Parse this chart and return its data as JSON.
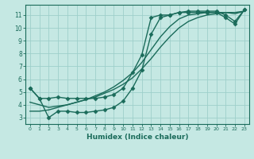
{
  "title": "",
  "xlabel": "Humidex (Indice chaleur)",
  "ylabel": "",
  "bg_color": "#c5e8e3",
  "grid_color": "#9ecfca",
  "line_color": "#1a6b5a",
  "xlim": [
    -0.5,
    23.5
  ],
  "ylim": [
    2.5,
    11.8
  ],
  "yticks": [
    3,
    4,
    5,
    6,
    7,
    8,
    9,
    10,
    11
  ],
  "xticks": [
    0,
    1,
    2,
    3,
    4,
    5,
    6,
    7,
    8,
    9,
    10,
    11,
    12,
    13,
    14,
    15,
    16,
    17,
    18,
    19,
    20,
    21,
    22,
    23
  ],
  "series": [
    {
      "x": [
        0,
        1,
        2,
        3,
        4,
        5,
        6,
        7,
        8,
        9,
        10,
        11,
        12,
        13,
        14,
        15,
        16,
        17,
        18,
        19,
        20,
        21,
        22,
        23
      ],
      "y": [
        5.3,
        4.5,
        4.5,
        4.6,
        4.5,
        4.5,
        4.5,
        4.5,
        4.6,
        4.8,
        5.3,
        6.5,
        7.9,
        10.8,
        11.0,
        11.0,
        11.2,
        11.3,
        11.3,
        11.3,
        11.3,
        11.0,
        10.5,
        11.4
      ],
      "marker": "D",
      "markersize": 2.5,
      "linewidth": 1.0
    },
    {
      "x": [
        0,
        1,
        2,
        3,
        4,
        5,
        6,
        7,
        8,
        9,
        10,
        11,
        12,
        13,
        14,
        15,
        16,
        17,
        18,
        19,
        20,
        21,
        22,
        23
      ],
      "y": [
        5.3,
        4.5,
        3.0,
        3.5,
        3.5,
        3.4,
        3.4,
        3.5,
        3.6,
        3.8,
        4.3,
        5.3,
        6.7,
        9.5,
        10.8,
        11.0,
        11.2,
        11.2,
        11.2,
        11.2,
        11.2,
        10.8,
        10.3,
        11.4
      ],
      "marker": "D",
      "markersize": 2.5,
      "linewidth": 1.0
    },
    {
      "x": [
        0,
        1,
        2,
        3,
        4,
        5,
        6,
        7,
        8,
        9,
        10,
        11,
        12,
        13,
        14,
        15,
        16,
        17,
        18,
        19,
        20,
        21,
        22,
        23
      ],
      "y": [
        3.5,
        3.5,
        3.6,
        3.8,
        4.0,
        4.2,
        4.4,
        4.6,
        4.9,
        5.2,
        5.6,
        6.1,
        6.8,
        7.6,
        8.5,
        9.3,
        10.0,
        10.5,
        10.8,
        11.0,
        11.1,
        11.2,
        11.2,
        11.3
      ],
      "marker": null,
      "markersize": 0,
      "linewidth": 1.0
    },
    {
      "x": [
        0,
        1,
        2,
        3,
        4,
        5,
        6,
        7,
        8,
        9,
        10,
        11,
        12,
        13,
        14,
        15,
        16,
        17,
        18,
        19,
        20,
        21,
        22,
        23
      ],
      "y": [
        4.2,
        4.0,
        3.8,
        3.9,
        4.0,
        4.2,
        4.4,
        4.7,
        5.0,
        5.4,
        5.9,
        6.5,
        7.3,
        8.3,
        9.3,
        10.1,
        10.7,
        11.0,
        11.1,
        11.2,
        11.2,
        11.2,
        11.1,
        11.3
      ],
      "marker": null,
      "markersize": 0,
      "linewidth": 1.0
    }
  ]
}
